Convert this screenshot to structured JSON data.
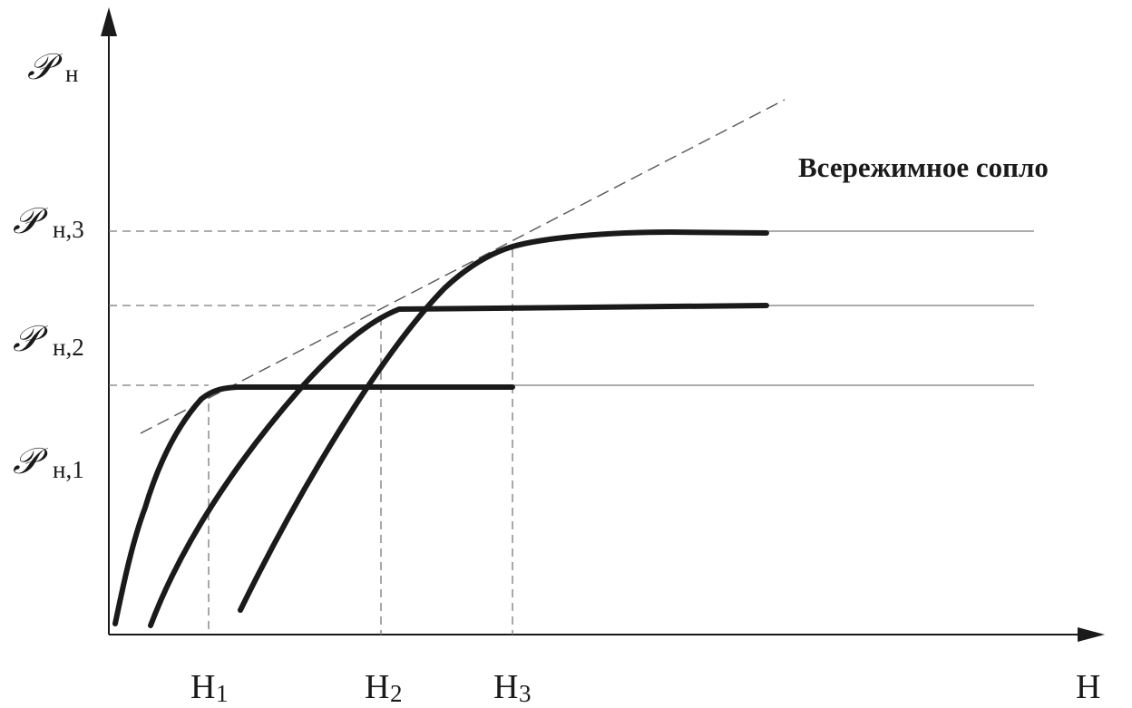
{
  "title": "Всережимное сопло",
  "y_axis": {
    "symbol": "𝒫",
    "axis_label_sub": "н",
    "ticks": [
      {
        "sub": "н,1"
      },
      {
        "sub": "н,2"
      },
      {
        "sub": "н,3"
      }
    ]
  },
  "x_axis": {
    "label": "Н",
    "ticks": [
      {
        "main": "Н",
        "sub": "1"
      },
      {
        "main": "Н",
        "sub": "2"
      },
      {
        "main": "Н",
        "sub": "3"
      }
    ]
  },
  "curves": [
    {
      "plateau_level": "н,1",
      "design_point": "Н1"
    },
    {
      "plateau_level": "н,2",
      "design_point": "Н2"
    },
    {
      "plateau_level": "н,3",
      "design_point": "Н3"
    }
  ],
  "envelope": {
    "style": "dashed"
  },
  "colors": {
    "ink": "#1a1a1a",
    "guide": "#7a7a7a"
  }
}
